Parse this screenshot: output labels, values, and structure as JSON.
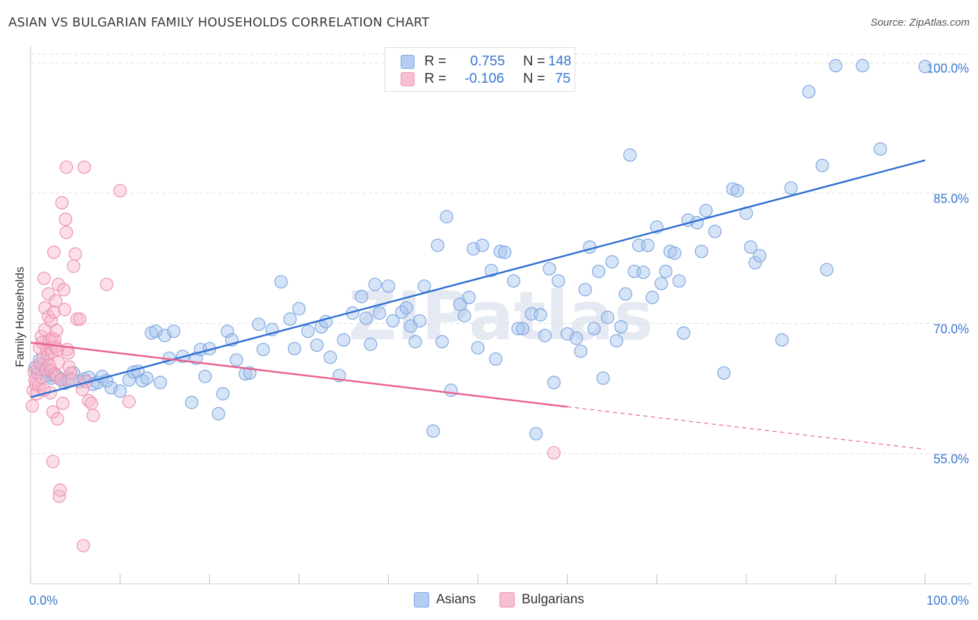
{
  "header": {
    "title": "ASIAN VS BULGARIAN FAMILY HOUSEHOLDS CORRELATION CHART",
    "source": "Source: ZipAtlas.com"
  },
  "legend": {
    "r_label": "R =",
    "n_label": "N =",
    "rows": [
      {
        "r": "0.755",
        "n": "148",
        "fill": "#b5cdf2",
        "stroke": "#7fa6e0"
      },
      {
        "r": "-0.106",
        "n": "75",
        "fill": "#f7bfd1",
        "stroke": "#ec92b0"
      }
    ]
  },
  "bottom_legend": [
    {
      "label": "Asians",
      "fill": "#b5cdf2",
      "stroke": "#7fa6e0"
    },
    {
      "label": "Bulgarians",
      "fill": "#f7bfd1",
      "stroke": "#ec92b0"
    }
  ],
  "watermark": "ZIPatlas",
  "chart_data": {
    "type": "scatter",
    "title": "ASIAN VS BULGARIAN FAMILY HOUSEHOLDS CORRELATION CHART",
    "xlabel": "",
    "ylabel": "Family Households",
    "xlim": [
      0,
      100
    ],
    "ylim": [
      40,
      101.5
    ],
    "x_tick_labels": [
      "0.0%",
      "100.0%"
    ],
    "y_ticks": [
      55,
      70,
      85,
      100
    ],
    "y_tick_labels": [
      "55.0%",
      "70.0%",
      "85.0%",
      "100.0%"
    ],
    "grid": true,
    "legend_position": "top-center",
    "colors": {
      "asians": "#2f6fd0",
      "bulgarians": "#e8608e",
      "tick_labels": "#3a77d1"
    },
    "series": [
      {
        "name": "Asians",
        "trend": {
          "x": [
            0,
            100
          ],
          "y": [
            61.5,
            88.8
          ],
          "style": "solid"
        },
        "points": [
          [
            0.5,
            64.9
          ],
          [
            0.8,
            64.3
          ],
          [
            1.0,
            65.8
          ],
          [
            1.2,
            64.7
          ],
          [
            1.5,
            65.3
          ],
          [
            1.8,
            64.5
          ],
          [
            2.0,
            64.0
          ],
          [
            2.3,
            63.7
          ],
          [
            2.5,
            64.1
          ],
          [
            3.0,
            63.9
          ],
          [
            3.4,
            63.6
          ],
          [
            3.8,
            63.1
          ],
          [
            4.2,
            63.4
          ],
          [
            4.8,
            64.3
          ],
          [
            5.5,
            63.3
          ],
          [
            6.0,
            63.6
          ],
          [
            6.5,
            63.8
          ],
          [
            7.0,
            63.0
          ],
          [
            7.5,
            63.2
          ],
          [
            8.0,
            63.9
          ],
          [
            8.5,
            63.4
          ],
          [
            9.0,
            62.6
          ],
          [
            10.0,
            62.2
          ],
          [
            11.0,
            63.5
          ],
          [
            11.5,
            64.4
          ],
          [
            12.0,
            64.5
          ],
          [
            12.5,
            63.4
          ],
          [
            13.0,
            63.7
          ],
          [
            13.5,
            68.9
          ],
          [
            14.0,
            69.1
          ],
          [
            14.5,
            63.2
          ],
          [
            15.0,
            68.6
          ],
          [
            15.5,
            66.0
          ],
          [
            16.0,
            69.1
          ],
          [
            17.0,
            66.2
          ],
          [
            18.0,
            60.9
          ],
          [
            18.5,
            66.0
          ],
          [
            19.0,
            67.0
          ],
          [
            19.5,
            63.9
          ],
          [
            20.0,
            67.1
          ],
          [
            21.0,
            59.6
          ],
          [
            21.5,
            61.9
          ],
          [
            22.0,
            69.1
          ],
          [
            22.5,
            68.1
          ],
          [
            23.0,
            65.8
          ],
          [
            24.0,
            64.2
          ],
          [
            24.5,
            64.3
          ],
          [
            25.5,
            69.9
          ],
          [
            26.0,
            67.0
          ],
          [
            27.0,
            69.3
          ],
          [
            28.0,
            74.8
          ],
          [
            29.0,
            70.5
          ],
          [
            29.5,
            67.1
          ],
          [
            30.0,
            71.7
          ],
          [
            31.0,
            69.1
          ],
          [
            32.0,
            67.5
          ],
          [
            32.5,
            69.6
          ],
          [
            33.0,
            70.2
          ],
          [
            33.5,
            66.1
          ],
          [
            34.5,
            64.0
          ],
          [
            35.0,
            68.1
          ],
          [
            36.0,
            71.2
          ],
          [
            37.0,
            73.1
          ],
          [
            37.5,
            70.6
          ],
          [
            38.0,
            67.6
          ],
          [
            38.5,
            74.5
          ],
          [
            39.0,
            71.2
          ],
          [
            40.0,
            74.3
          ],
          [
            40.5,
            70.3
          ],
          [
            41.5,
            71.3
          ],
          [
            42.0,
            71.8
          ],
          [
            42.5,
            69.7
          ],
          [
            43.0,
            67.9
          ],
          [
            43.5,
            70.3
          ],
          [
            44.0,
            74.3
          ],
          [
            45.0,
            57.6
          ],
          [
            45.5,
            79.0
          ],
          [
            46.0,
            67.9
          ],
          [
            46.5,
            82.3
          ],
          [
            47.0,
            62.3
          ],
          [
            48.0,
            72.2
          ],
          [
            48.5,
            70.9
          ],
          [
            49.0,
            73.0
          ],
          [
            49.5,
            78.6
          ],
          [
            50.0,
            67.2
          ],
          [
            50.5,
            79.0
          ],
          [
            51.5,
            76.1
          ],
          [
            52.0,
            65.9
          ],
          [
            52.5,
            78.3
          ],
          [
            53.0,
            78.2
          ],
          [
            54.0,
            74.9
          ],
          [
            54.5,
            69.4
          ],
          [
            55.0,
            69.4
          ],
          [
            56.0,
            71.1
          ],
          [
            56.5,
            57.3
          ],
          [
            57.0,
            71.0
          ],
          [
            57.5,
            68.6
          ],
          [
            58.0,
            76.3
          ],
          [
            58.5,
            63.2
          ],
          [
            59.0,
            74.9
          ],
          [
            60.0,
            68.8
          ],
          [
            61.0,
            68.3
          ],
          [
            61.5,
            66.8
          ],
          [
            62.0,
            73.9
          ],
          [
            62.5,
            78.8
          ],
          [
            63.0,
            69.4
          ],
          [
            63.5,
            76.0
          ],
          [
            64.0,
            63.7
          ],
          [
            64.5,
            70.7
          ],
          [
            65.0,
            77.1
          ],
          [
            65.5,
            68.0
          ],
          [
            66.0,
            69.6
          ],
          [
            66.5,
            73.4
          ],
          [
            67.0,
            89.4
          ],
          [
            67.5,
            76.0
          ],
          [
            68.0,
            79.0
          ],
          [
            68.5,
            75.9
          ],
          [
            69.0,
            79.0
          ],
          [
            69.5,
            73.0
          ],
          [
            70.0,
            81.1
          ],
          [
            70.5,
            74.6
          ],
          [
            71.0,
            76.0
          ],
          [
            71.5,
            78.3
          ],
          [
            72.0,
            78.1
          ],
          [
            72.5,
            74.9
          ],
          [
            73.0,
            68.9
          ],
          [
            73.5,
            81.9
          ],
          [
            74.5,
            81.6
          ],
          [
            75.0,
            78.3
          ],
          [
            75.5,
            83.0
          ],
          [
            76.5,
            80.6
          ],
          [
            77.5,
            64.3
          ],
          [
            78.5,
            85.5
          ],
          [
            79.0,
            85.3
          ],
          [
            80.0,
            82.7
          ],
          [
            80.5,
            78.8
          ],
          [
            81.0,
            77.0
          ],
          [
            81.5,
            77.8
          ],
          [
            84.0,
            68.1
          ],
          [
            85.0,
            85.6
          ],
          [
            87.0,
            96.7
          ],
          [
            88.5,
            88.2
          ],
          [
            89.0,
            76.2
          ],
          [
            90.0,
            99.7
          ],
          [
            93.0,
            99.7
          ],
          [
            95.0,
            90.1
          ],
          [
            100.0,
            99.6
          ]
        ]
      },
      {
        "name": "Bulgarians",
        "trend": {
          "x": [
            0,
            60,
            100
          ],
          "y": [
            67.8,
            60.4,
            55.5
          ],
          "style": "solid-then-dashed"
        },
        "points": [
          [
            0.2,
            60.5
          ],
          [
            0.3,
            62.3
          ],
          [
            0.4,
            64.4
          ],
          [
            0.5,
            63.5
          ],
          [
            0.6,
            63.0
          ],
          [
            0.7,
            61.9
          ],
          [
            0.8,
            64.8
          ],
          [
            0.9,
            62.9
          ],
          [
            1.0,
            67.2
          ],
          [
            1.1,
            65.4
          ],
          [
            1.2,
            63.8
          ],
          [
            1.2,
            68.5
          ],
          [
            1.3,
            67.8
          ],
          [
            1.4,
            66.0
          ],
          [
            1.5,
            75.2
          ],
          [
            1.5,
            62.3
          ],
          [
            1.6,
            71.8
          ],
          [
            1.6,
            69.3
          ],
          [
            1.7,
            64.7
          ],
          [
            1.8,
            67.0
          ],
          [
            1.9,
            66.4
          ],
          [
            2.0,
            73.4
          ],
          [
            2.0,
            70.8
          ],
          [
            2.1,
            68.0
          ],
          [
            2.1,
            65.2
          ],
          [
            2.2,
            62.0
          ],
          [
            2.2,
            67.2
          ],
          [
            2.3,
            70.3
          ],
          [
            2.3,
            64.6
          ],
          [
            2.4,
            68.3
          ],
          [
            2.4,
            66.7
          ],
          [
            2.5,
            54.1
          ],
          [
            2.5,
            59.8
          ],
          [
            2.6,
            78.2
          ],
          [
            2.6,
            71.3
          ],
          [
            2.7,
            68.1
          ],
          [
            2.7,
            64.2
          ],
          [
            2.8,
            72.6
          ],
          [
            2.8,
            67.3
          ],
          [
            2.9,
            69.2
          ],
          [
            2.9,
            63.9
          ],
          [
            3.0,
            67.0
          ],
          [
            3.0,
            59.0
          ],
          [
            3.1,
            74.5
          ],
          [
            3.1,
            65.5
          ],
          [
            3.2,
            50.1
          ],
          [
            3.3,
            50.8
          ],
          [
            3.4,
            63.5
          ],
          [
            3.5,
            83.9
          ],
          [
            3.6,
            60.8
          ],
          [
            3.7,
            73.9
          ],
          [
            3.8,
            71.6
          ],
          [
            3.9,
            82.0
          ],
          [
            4.0,
            80.5
          ],
          [
            4.0,
            88.0
          ],
          [
            4.1,
            67.0
          ],
          [
            4.2,
            66.6
          ],
          [
            4.3,
            65.0
          ],
          [
            4.5,
            64.3
          ],
          [
            4.6,
            63.5
          ],
          [
            4.8,
            76.6
          ],
          [
            5.0,
            78.0
          ],
          [
            5.2,
            70.5
          ],
          [
            5.5,
            70.5
          ],
          [
            5.8,
            62.4
          ],
          [
            5.9,
            44.4
          ],
          [
            6.0,
            88.0
          ],
          [
            6.2,
            63.3
          ],
          [
            6.5,
            61.1
          ],
          [
            6.8,
            60.8
          ],
          [
            7.0,
            59.4
          ],
          [
            8.5,
            74.5
          ],
          [
            10.0,
            85.3
          ],
          [
            11.0,
            61.0
          ],
          [
            58.5,
            55.1
          ]
        ]
      }
    ]
  }
}
